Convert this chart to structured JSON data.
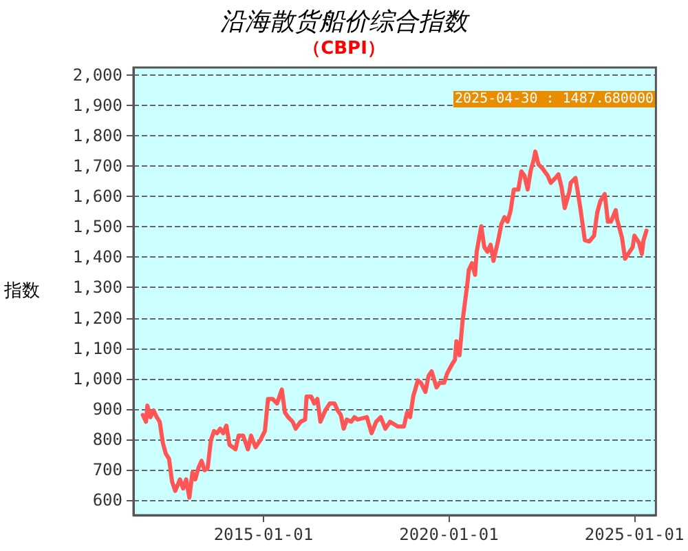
{
  "chart_data": {
    "type": "line",
    "title": "沿海散货船价综合指数",
    "subtitle": "（CBPI）",
    "ylabel": "指数",
    "annotations": [
      "2025-04-30 : 1487.680000"
    ],
    "x": [
      "2011-10-01",
      "2011-11-01",
      "2011-11-15",
      "2011-12-15",
      "2012-01-15",
      "2012-02-15",
      "2012-03-15",
      "2012-04-15",
      "2012-05-15",
      "2012-06-15",
      "2012-07-15",
      "2012-08-15",
      "2012-10-01",
      "2012-11-01",
      "2012-12-01",
      "2013-01-01",
      "2013-02-01",
      "2013-03-01",
      "2013-04-01",
      "2013-05-01",
      "2013-06-01",
      "2013-07-01",
      "2013-08-01",
      "2013-09-01",
      "2013-10-01",
      "2013-11-01",
      "2013-12-01",
      "2014-01-01",
      "2014-02-01",
      "2014-04-01",
      "2014-05-01",
      "2014-06-15",
      "2014-08-01",
      "2014-09-01",
      "2014-10-15",
      "2014-12-01",
      "2015-01-15",
      "2015-02-15",
      "2015-04-01",
      "2015-05-15",
      "2015-07-01",
      "2015-08-01",
      "2015-09-01",
      "2015-10-15",
      "2015-11-15",
      "2016-01-01",
      "2016-02-15",
      "2016-03-01",
      "2016-04-15",
      "2016-05-15",
      "2016-06-15",
      "2016-07-15",
      "2016-09-01",
      "2016-10-15",
      "2016-12-01",
      "2017-01-01",
      "2017-02-01",
      "2017-03-01",
      "2017-04-01",
      "2017-05-15",
      "2017-06-15",
      "2017-07-15",
      "2017-10-15",
      "2017-12-01",
      "2018-01-15",
      "2018-03-01",
      "2018-04-15",
      "2018-06-01",
      "2018-08-15",
      "2018-10-15",
      "2018-11-15",
      "2018-12-15",
      "2019-01-15",
      "2019-03-01",
      "2019-04-01",
      "2019-05-15",
      "2019-06-15",
      "2019-07-15",
      "2019-09-01",
      "2019-10-01",
      "2019-11-15",
      "2019-12-15",
      "2020-02-01",
      "2020-03-01",
      "2020-03-15",
      "2020-04-15",
      "2020-05-15",
      "2020-07-01",
      "2020-07-15",
      "2020-08-15",
      "2020-09-15",
      "2020-10-01",
      "2020-11-15",
      "2020-12-15",
      "2021-01-15",
      "2021-02-15",
      "2021-03-15",
      "2021-05-01",
      "2021-06-01",
      "2021-07-01",
      "2021-08-01",
      "2021-09-01",
      "2021-10-01",
      "2021-11-15",
      "2021-12-15",
      "2022-01-15",
      "2022-02-15",
      "2022-03-15",
      "2022-04-15",
      "2022-05-01",
      "2022-06-01",
      "2022-07-15",
      "2022-09-01",
      "2022-10-01",
      "2022-11-15",
      "2022-12-15",
      "2023-01-15",
      "2023-02-15",
      "2023-04-01",
      "2023-04-15",
      "2023-06-01",
      "2023-07-15",
      "2023-09-01",
      "2023-10-15",
      "2023-12-01",
      "2024-01-01",
      "2024-02-01",
      "2024-03-15",
      "2024-04-15",
      "2024-05-15",
      "2024-07-01",
      "2024-07-15",
      "2024-09-01",
      "2024-10-01",
      "2024-11-01",
      "2024-12-15",
      "2025-01-01",
      "2025-02-15",
      "2025-03-15",
      "2025-04-01",
      "2025-04-30"
    ],
    "series": [
      {
        "color": "#ff5555",
        "values": [
          880,
          858,
          911,
          873,
          895,
          873,
          858,
          789,
          752,
          736,
          661,
          630,
          668,
          638,
          668,
          608,
          691,
          668,
          706,
          729,
          698,
          706,
          797,
          827,
          820,
          835,
          820,
          845,
          782,
          767,
          812,
          812,
          767,
          812,
          774,
          797,
          827,
          933,
          933,
          918,
          964,
          888,
          873,
          858,
          835,
          858,
          865,
          941,
          941,
          918,
          933,
          858,
          895,
          918,
          918,
          895,
          880,
          835,
          865,
          858,
          873,
          865,
          873,
          820,
          858,
          873,
          835,
          858,
          842,
          842,
          888,
          873,
          941,
          994,
          986,
          956,
          1009,
          1024,
          971,
          986,
          986,
          1017,
          1047,
          1062,
          1123,
          1077,
          1191,
          1312,
          1358,
          1380,
          1342,
          1418,
          1502,
          1433,
          1418,
          1441,
          1388,
          1456,
          1509,
          1532,
          1517,
          1555,
          1623,
          1623,
          1683,
          1668,
          1623,
          1683,
          1721,
          1748,
          1706,
          1691,
          1668,
          1645,
          1661,
          1673,
          1630,
          1562,
          1615,
          1645,
          1661,
          1570,
          1456,
          1452,
          1471,
          1547,
          1585,
          1608,
          1517,
          1517,
          1555,
          1524,
          1464,
          1395,
          1411,
          1433,
          1471,
          1448,
          1411,
          1456,
          1487.68
        ]
      }
    ],
    "xlim": [
      "2011-07-01",
      "2025-08-01"
    ],
    "xticks": [
      "2015-01-01",
      "2020-01-01",
      "2025-01-01"
    ],
    "ylim": [
      550,
      2025
    ],
    "yticks": [
      600,
      700,
      800,
      900,
      {
        "value": 1000,
        "label": "1,000"
      },
      {
        "value": 1100,
        "label": "1,100"
      },
      {
        "value": 1200,
        "label": "1,200"
      },
      {
        "value": 1300,
        "label": "1,300"
      },
      {
        "value": 1400,
        "label": "1,400"
      },
      {
        "value": 1500,
        "label": "1,500"
      },
      {
        "value": 1600,
        "label": "1,600"
      },
      {
        "value": 1700,
        "label": "1,700"
      },
      {
        "value": 1800,
        "label": "1,800"
      },
      {
        "value": 1900,
        "label": "1,900"
      },
      {
        "value": 2000,
        "label": "2,000"
      }
    ],
    "grid": "y",
    "marker": "none",
    "line_style": "solid"
  }
}
